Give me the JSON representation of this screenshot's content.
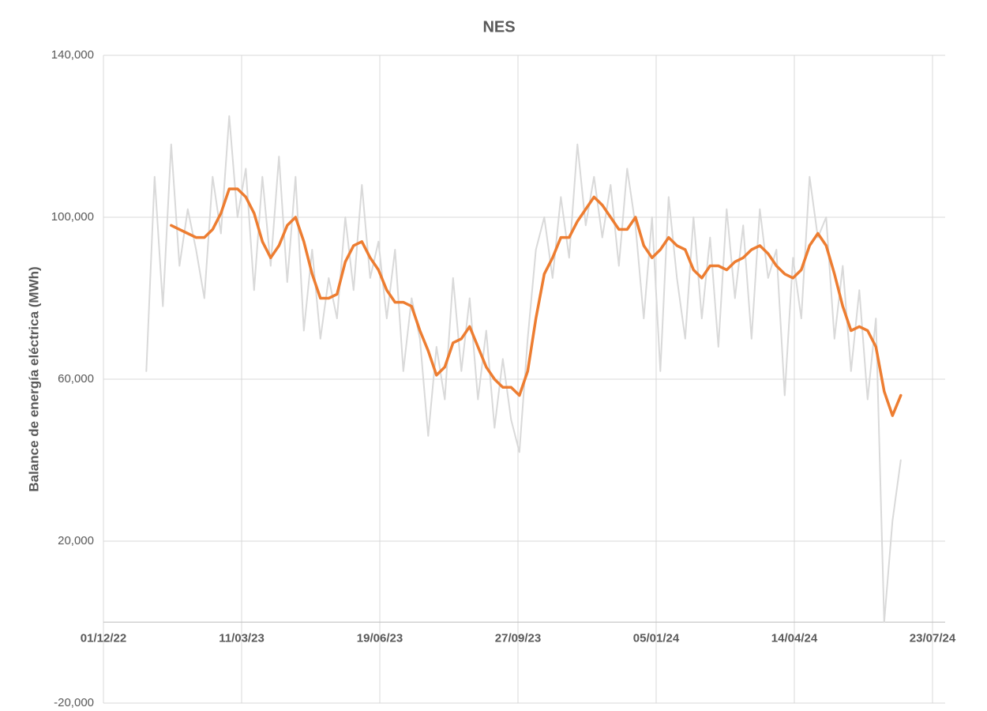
{
  "chart_data": {
    "type": "line",
    "subtitle": "NES",
    "y_label": "Balance de energía eléctrica (MWh)",
    "ylim": [
      -20000,
      140000
    ],
    "yticks": [
      {
        "value": -20000,
        "label": "-20,000"
      },
      {
        "value": 20000,
        "label": "20,000"
      },
      {
        "value": 60000,
        "label": "60,000"
      },
      {
        "value": 100000,
        "label": "100,000"
      },
      {
        "value": 140000,
        "label": "140,000"
      }
    ],
    "xlim": [
      "2022-12-01",
      "2024-07-23"
    ],
    "xticks": [
      {
        "value": "2022-12-01",
        "label": "01/12/22"
      },
      {
        "value": "2023-03-11",
        "label": "11/03/23"
      },
      {
        "value": "2023-06-19",
        "label": "19/06/23"
      },
      {
        "value": "2023-09-27",
        "label": "27/09/23"
      },
      {
        "value": "2024-01-05",
        "label": "05/01/24"
      },
      {
        "value": "2024-04-14",
        "label": "14/04/24"
      },
      {
        "value": "2024-07-23",
        "label": "23/07/24"
      }
    ],
    "grid": true,
    "x": [
      "2023-01-01",
      "2023-01-07",
      "2023-01-13",
      "2023-01-19",
      "2023-01-25",
      "2023-01-31",
      "2023-02-06",
      "2023-02-12",
      "2023-02-18",
      "2023-02-24",
      "2023-03-02",
      "2023-03-08",
      "2023-03-14",
      "2023-03-20",
      "2023-03-26",
      "2023-04-01",
      "2023-04-07",
      "2023-04-13",
      "2023-04-19",
      "2023-04-25",
      "2023-05-01",
      "2023-05-07",
      "2023-05-13",
      "2023-05-19",
      "2023-05-25",
      "2023-05-31",
      "2023-06-06",
      "2023-06-12",
      "2023-06-18",
      "2023-06-24",
      "2023-06-30",
      "2023-07-06",
      "2023-07-12",
      "2023-07-18",
      "2023-07-24",
      "2023-07-30",
      "2023-08-05",
      "2023-08-11",
      "2023-08-17",
      "2023-08-23",
      "2023-08-29",
      "2023-09-04",
      "2023-09-10",
      "2023-09-16",
      "2023-09-22",
      "2023-09-28",
      "2023-10-04",
      "2023-10-10",
      "2023-10-16",
      "2023-10-22",
      "2023-10-28",
      "2023-11-03",
      "2023-11-09",
      "2023-11-15",
      "2023-11-21",
      "2023-11-27",
      "2023-12-03",
      "2023-12-09",
      "2023-12-15",
      "2023-12-21",
      "2023-12-27",
      "2024-01-02",
      "2024-01-08",
      "2024-01-14",
      "2024-01-20",
      "2024-01-26",
      "2024-02-01",
      "2024-02-07",
      "2024-02-13",
      "2024-02-19",
      "2024-02-25",
      "2024-03-02",
      "2024-03-08",
      "2024-03-14",
      "2024-03-20",
      "2024-03-26",
      "2024-04-01",
      "2024-04-07",
      "2024-04-13",
      "2024-04-19",
      "2024-04-25",
      "2024-05-01",
      "2024-05-07",
      "2024-05-13",
      "2024-05-19",
      "2024-05-25",
      "2024-05-31",
      "2024-06-06",
      "2024-06-12",
      "2024-06-18",
      "2024-06-24",
      "2024-06-30"
    ],
    "series": [
      {
        "color": "#d9d9d9",
        "width": 2,
        "values": [
          62000,
          110000,
          78000,
          118000,
          88000,
          102000,
          92000,
          80000,
          110000,
          96000,
          125000,
          100000,
          112000,
          82000,
          110000,
          88000,
          115000,
          84000,
          110000,
          72000,
          92000,
          70000,
          85000,
          75000,
          100000,
          82000,
          108000,
          85000,
          94000,
          75000,
          92000,
          62000,
          80000,
          70000,
          46000,
          68000,
          55000,
          85000,
          62000,
          80000,
          55000,
          72000,
          48000,
          65000,
          50000,
          42000,
          70000,
          92000,
          100000,
          85000,
          105000,
          90000,
          118000,
          98000,
          110000,
          95000,
          108000,
          88000,
          112000,
          98000,
          75000,
          100000,
          62000,
          105000,
          85000,
          70000,
          100000,
          75000,
          95000,
          68000,
          102000,
          80000,
          98000,
          70000,
          102000,
          85000,
          92000,
          56000,
          90000,
          75000,
          110000,
          95000,
          100000,
          70000,
          88000,
          62000,
          82000,
          55000,
          75000,
          0,
          25000,
          40000
        ]
      },
      {
        "color": "#ed7d31",
        "width": 3.5,
        "values": [
          null,
          null,
          null,
          98000,
          97000,
          96000,
          95000,
          95000,
          97000,
          101000,
          107000,
          107000,
          105000,
          101000,
          94000,
          90000,
          93000,
          98000,
          100000,
          94000,
          86000,
          80000,
          80000,
          81000,
          89000,
          93000,
          94000,
          90000,
          87000,
          82000,
          79000,
          79000,
          78000,
          72000,
          67000,
          61000,
          63000,
          69000,
          70000,
          73000,
          68000,
          63000,
          60000,
          58000,
          58000,
          56000,
          62000,
          75000,
          86000,
          90000,
          95000,
          95000,
          99000,
          102000,
          105000,
          103000,
          100000,
          97000,
          97000,
          100000,
          93000,
          90000,
          92000,
          95000,
          93000,
          92000,
          87000,
          85000,
          88000,
          88000,
          87000,
          89000,
          90000,
          92000,
          93000,
          91000,
          88000,
          86000,
          85000,
          87000,
          93000,
          96000,
          93000,
          86000,
          78000,
          72000,
          73000,
          72000,
          68000,
          57000,
          51000,
          56000
        ]
      }
    ]
  }
}
